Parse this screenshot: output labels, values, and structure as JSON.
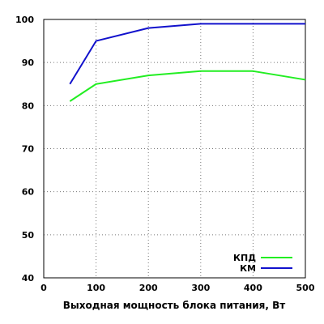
{
  "chart_data": {
    "type": "line",
    "title": "",
    "xlabel": "Выходная мощность блока питания, Вт",
    "ylabel": "",
    "xlim": [
      0,
      500
    ],
    "ylim": [
      40,
      100
    ],
    "xticks": [
      0,
      100,
      200,
      300,
      400,
      500
    ],
    "yticks": [
      40,
      50,
      60,
      70,
      80,
      90,
      100
    ],
    "grid": true,
    "legend_position": "bottom-right",
    "series": [
      {
        "name": "КПД",
        "color": "#22ee22",
        "x": [
          50,
          100,
          200,
          300,
          400,
          500
        ],
        "y": [
          81,
          85,
          87,
          88,
          88,
          86
        ]
      },
      {
        "name": "КМ",
        "color": "#1111cc",
        "x": [
          50,
          100,
          200,
          300,
          400,
          500
        ],
        "y": [
          85,
          95,
          98,
          99,
          99,
          99
        ]
      }
    ]
  }
}
